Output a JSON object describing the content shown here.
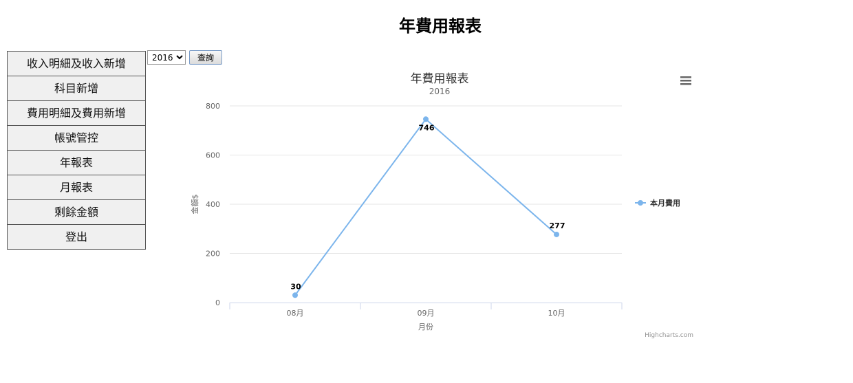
{
  "page": {
    "title": "年費用報表"
  },
  "nav": {
    "items": [
      "收入明細及收入新增",
      "科目新增",
      "費用明細及費用新增",
      "帳號管控",
      "年報表",
      "月報表",
      "剩餘金額",
      "登出"
    ]
  },
  "filter": {
    "year_value": "2016",
    "query_label": "查詢"
  },
  "chart_data": {
    "type": "line",
    "title": "年費用報表",
    "subtitle": "2016",
    "xlabel": "月份",
    "ylabel": "金額$",
    "categories": [
      "08月",
      "09月",
      "10月"
    ],
    "series": [
      {
        "name": "本月費用",
        "values": [
          30,
          746,
          277
        ],
        "color": "#7cb5ec"
      }
    ],
    "ylim": [
      0,
      800
    ],
    "yticks": [
      0,
      200,
      400,
      600,
      800
    ],
    "grid": true,
    "legend": "right",
    "credit": "Highcharts.com"
  },
  "icons": {
    "menu": "hamburger-menu-icon"
  }
}
